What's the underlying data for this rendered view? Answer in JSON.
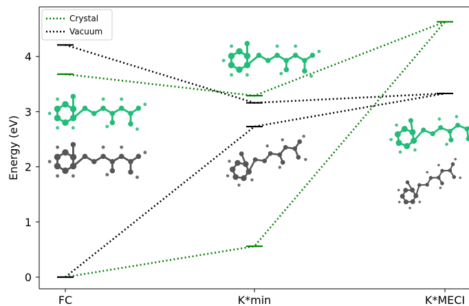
{
  "chart_data": {
    "type": "line",
    "title": "",
    "xlabel": "",
    "ylabel": "Energy (eV)",
    "categories": [
      "FC",
      "K*min",
      "K*MECI"
    ],
    "ylim": [
      -0.2,
      4.9
    ],
    "yticks": [
      0,
      1,
      2,
      3,
      4
    ],
    "grid": false,
    "legend_position": "upper-left",
    "series": [
      {
        "name": "Crystal",
        "color": "#008000",
        "line_style": "dotted",
        "segments": [
          {
            "points": [
              {
                "x": "FC",
                "y": 3.68
              },
              {
                "x": "K*min",
                "y": 3.29
              },
              {
                "x": "K*MECI",
                "y": 4.63
              }
            ]
          },
          {
            "points": [
              {
                "x": "FC",
                "y": 0.0
              },
              {
                "x": "K*min",
                "y": 0.56
              },
              {
                "x": "K*MECI",
                "y": 4.63
              }
            ]
          }
        ]
      },
      {
        "name": "Vacuum",
        "color": "#000000",
        "line_style": "dotted",
        "segments": [
          {
            "points": [
              {
                "x": "FC",
                "y": 4.21
              },
              {
                "x": "K*min",
                "y": 3.16
              },
              {
                "x": "K*MECI",
                "y": 3.33
              }
            ]
          },
          {
            "points": [
              {
                "x": "FC",
                "y": 0.0
              },
              {
                "x": "K*min",
                "y": 2.73
              },
              {
                "x": "K*MECI",
                "y": 3.33
              }
            ]
          }
        ]
      }
    ]
  },
  "colors": {
    "crystal_molecule": "#22bb77",
    "vacuum_molecule": "#555555"
  }
}
